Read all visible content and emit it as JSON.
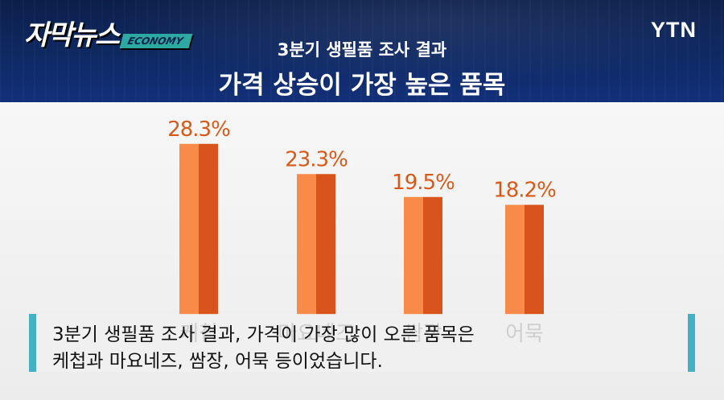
{
  "header": {
    "brand_title": "자막뉴스",
    "brand_tag": "ECONOMY",
    "logo": "YTN",
    "subtitle": "3분기 생필품 조사 결과",
    "title": "가격 상승이 가장 높은 품목"
  },
  "chart_data": {
    "type": "bar",
    "title": "가격 상승이 가장 높은 품목",
    "subtitle": "3분기 생필품 조사 결과",
    "categories": [
      "케첩",
      "마요네즈",
      "쌈장",
      "어묵"
    ],
    "values": [
      28.3,
      23.3,
      19.5,
      18.2
    ],
    "value_labels": [
      "28.3%",
      "23.3%",
      "19.5%",
      "18.2%"
    ],
    "ylim": [
      0,
      30
    ],
    "grid": false,
    "colors": {
      "bar_light": "#f98b4a",
      "bar_dark": "#d9541d",
      "label": "#d85a1a"
    }
  },
  "caption": {
    "line1": "3분기 생필품 조사 결과, 가격이 가장 많이 오른 품목은",
    "line2": "케첩과 마요네즈, 쌈장, 어묵 등이었습니다."
  }
}
